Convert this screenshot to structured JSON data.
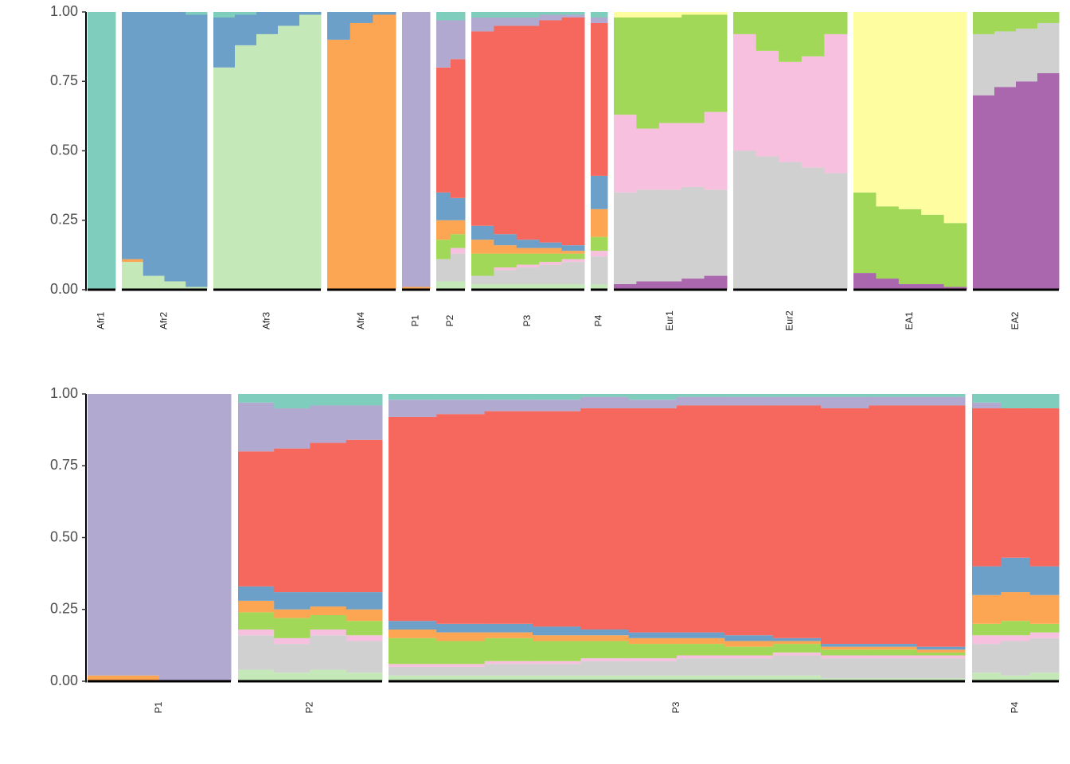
{
  "chart_data": [
    {
      "type": "bar",
      "stacked": true,
      "ylim": [
        0,
        1
      ],
      "yticks": [
        {
          "value": 0,
          "label": "0.00"
        },
        0.25,
        {
          "value": 0.5,
          "label": "0.50"
        },
        0.75,
        {
          "value": 1,
          "label": "1.00"
        }
      ],
      "colors": [
        "#ab67ae",
        "#c5e8b8",
        "#d0d0d0",
        "#f8c0df",
        "#a2d858",
        "#fefea0",
        "#fca552",
        "#6ca0c8",
        "#f6685e",
        "#b1a9d0",
        "#7fcdbc"
      ],
      "groups": [
        {
          "label": "Afr1",
          "individuals": [
            [
              0,
              0,
              0,
              0,
              0,
              0,
              0,
              0,
              0,
              0,
              1
            ]
          ]
        },
        {
          "label": "Afr2",
          "individuals": [
            [
              0,
              0.1,
              0,
              0,
              0,
              0,
              0.01,
              0.89,
              0,
              0,
              0
            ],
            [
              0,
              0.05,
              0,
              0,
              0,
              0,
              0,
              0.95,
              0,
              0,
              0
            ],
            [
              0,
              0.03,
              0,
              0,
              0,
              0,
              0,
              0.97,
              0,
              0,
              0
            ],
            [
              0,
              0.01,
              0,
              0,
              0,
              0,
              0,
              0.98,
              0,
              0,
              0.01
            ]
          ]
        },
        {
          "label": "Afr3",
          "individuals": [
            [
              0,
              0.8,
              0,
              0,
              0,
              0,
              0,
              0.18,
              0,
              0,
              0.02
            ],
            [
              0,
              0.88,
              0,
              0,
              0,
              0,
              0,
              0.11,
              0,
              0,
              0.01
            ],
            [
              0,
              0.92,
              0,
              0,
              0,
              0,
              0,
              0.08,
              0,
              0,
              0
            ],
            [
              0,
              0.95,
              0,
              0,
              0,
              0,
              0,
              0.05,
              0,
              0,
              0
            ],
            [
              0,
              0.99,
              0,
              0,
              0,
              0,
              0,
              0.01,
              0,
              0,
              0
            ]
          ]
        },
        {
          "label": "Afr4",
          "individuals": [
            [
              0,
              0,
              0,
              0,
              0,
              0,
              0.9,
              0.1,
              0,
              0,
              0
            ],
            [
              0,
              0,
              0,
              0,
              0,
              0,
              0.96,
              0.04,
              0,
              0,
              0
            ],
            [
              0,
              0,
              0,
              0,
              0,
              0,
              0.99,
              0.01,
              0,
              0,
              0
            ]
          ]
        },
        {
          "label": "P1",
          "individuals": [
            [
              0,
              0,
              0,
              0,
              0,
              0,
              0.01,
              0,
              0,
              0.99,
              0
            ]
          ]
        },
        {
          "label": "P2",
          "individuals": [
            [
              0,
              0.03,
              0.08,
              0,
              0.07,
              0,
              0.07,
              0.1,
              0.45,
              0.17,
              0.03
            ],
            [
              0,
              0.03,
              0.1,
              0.02,
              0.05,
              0,
              0.05,
              0.08,
              0.5,
              0.14,
              0.03
            ]
          ]
        },
        {
          "label": "P3",
          "individuals": [
            [
              0,
              0.02,
              0.03,
              0,
              0.08,
              0,
              0.05,
              0.05,
              0.7,
              0.05,
              0.02
            ],
            [
              0,
              0.02,
              0.05,
              0.01,
              0.05,
              0,
              0.03,
              0.04,
              0.75,
              0.03,
              0.02
            ],
            [
              0,
              0.02,
              0.06,
              0.01,
              0.04,
              0,
              0.02,
              0.03,
              0.77,
              0.03,
              0.02
            ],
            [
              0,
              0.02,
              0.07,
              0.01,
              0.03,
              0,
              0.02,
              0.02,
              0.8,
              0.02,
              0.01
            ],
            [
              0,
              0.02,
              0.08,
              0.01,
              0.02,
              0,
              0.01,
              0.02,
              0.82,
              0.01,
              0.01
            ]
          ]
        },
        {
          "label": "P4",
          "individuals": [
            [
              0,
              0.02,
              0.1,
              0.02,
              0.05,
              0,
              0.1,
              0.12,
              0.55,
              0.02,
              0.02
            ]
          ]
        },
        {
          "label": "Eur1",
          "individuals": [
            [
              0.02,
              0,
              0.33,
              0.28,
              0.35,
              0.02,
              0,
              0,
              0,
              0,
              0
            ],
            [
              0.03,
              0,
              0.33,
              0.22,
              0.4,
              0.02,
              0,
              0,
              0,
              0,
              0
            ],
            [
              0.03,
              0,
              0.33,
              0.24,
              0.38,
              0.02,
              0,
              0,
              0,
              0,
              0
            ],
            [
              0.04,
              0,
              0.33,
              0.23,
              0.39,
              0.01,
              0,
              0,
              0,
              0,
              0
            ],
            [
              0.05,
              0,
              0.31,
              0.28,
              0.35,
              0.01,
              0,
              0,
              0,
              0,
              0
            ]
          ]
        },
        {
          "label": "Eur2",
          "individuals": [
            [
              0,
              0,
              0.5,
              0.42,
              0.08,
              0,
              0,
              0,
              0,
              0,
              0
            ],
            [
              0,
              0,
              0.48,
              0.38,
              0.14,
              0,
              0,
              0,
              0,
              0,
              0
            ],
            [
              0,
              0,
              0.46,
              0.36,
              0.18,
              0,
              0,
              0,
              0,
              0,
              0
            ],
            [
              0,
              0,
              0.44,
              0.4,
              0.16,
              0,
              0,
              0,
              0,
              0,
              0
            ],
            [
              0,
              0,
              0.42,
              0.5,
              0.08,
              0,
              0,
              0,
              0,
              0,
              0
            ]
          ]
        },
        {
          "label": "EA1",
          "individuals": [
            [
              0.06,
              0,
              0,
              0,
              0.29,
              0.65,
              0,
              0,
              0,
              0,
              0
            ],
            [
              0.04,
              0,
              0,
              0,
              0.26,
              0.7,
              0,
              0,
              0,
              0,
              0
            ],
            [
              0.02,
              0,
              0,
              0,
              0.27,
              0.71,
              0,
              0,
              0,
              0,
              0
            ],
            [
              0.02,
              0,
              0,
              0,
              0.25,
              0.73,
              0,
              0,
              0,
              0,
              0
            ],
            [
              0.01,
              0,
              0,
              0,
              0.23,
              0.76,
              0,
              0,
              0,
              0,
              0
            ]
          ]
        },
        {
          "label": "EA2",
          "individuals": [
            [
              0.7,
              0,
              0.22,
              0,
              0.08,
              0,
              0,
              0,
              0,
              0,
              0
            ],
            [
              0.73,
              0,
              0.2,
              0,
              0.07,
              0,
              0,
              0,
              0,
              0,
              0
            ],
            [
              0.75,
              0,
              0.19,
              0,
              0.06,
              0,
              0,
              0,
              0,
              0,
              0
            ],
            [
              0.78,
              0,
              0.18,
              0,
              0.04,
              0,
              0,
              0,
              0,
              0,
              0
            ]
          ]
        }
      ]
    },
    {
      "type": "bar",
      "stacked": true,
      "ylim": [
        0,
        1
      ],
      "yticks": [
        {
          "value": 0,
          "label": "0.00"
        },
        0.25,
        {
          "value": 0.5,
          "label": "0.50"
        },
        0.75,
        {
          "value": 1,
          "label": "1.00"
        }
      ],
      "colors": [
        "#ab67ae",
        "#c5e8b8",
        "#d0d0d0",
        "#f8c0df",
        "#a2d858",
        "#fefea0",
        "#fca552",
        "#6ca0c8",
        "#f6685e",
        "#b1a9d0",
        "#7fcdbc"
      ],
      "groups": [
        {
          "label": "P1",
          "individuals": [
            [
              0,
              0,
              0,
              0,
              0,
              0,
              0.02,
              0,
              0,
              0.98,
              0
            ],
            [
              0,
              0,
              0,
              0,
              0,
              0,
              0,
              0,
              0,
              1,
              0
            ]
          ]
        },
        {
          "label": "P2",
          "individuals": [
            [
              0,
              0.04,
              0.12,
              0.02,
              0.06,
              0,
              0.04,
              0.05,
              0.47,
              0.17,
              0.03
            ],
            [
              0,
              0.03,
              0.1,
              0.02,
              0.07,
              0,
              0.03,
              0.06,
              0.5,
              0.14,
              0.05
            ],
            [
              0,
              0.04,
              0.12,
              0.02,
              0.05,
              0,
              0.03,
              0.05,
              0.52,
              0.13,
              0.04
            ],
            [
              0,
              0.03,
              0.11,
              0.02,
              0.05,
              0,
              0.04,
              0.06,
              0.53,
              0.12,
              0.04
            ]
          ]
        },
        {
          "label": "P3",
          "individuals": [
            [
              0,
              0.02,
              0.03,
              0.01,
              0.09,
              0,
              0.03,
              0.03,
              0.71,
              0.06,
              0.02
            ],
            [
              0,
              0.02,
              0.03,
              0.01,
              0.08,
              0,
              0.03,
              0.03,
              0.73,
              0.05,
              0.02
            ],
            [
              0,
              0.02,
              0.04,
              0.01,
              0.08,
              0,
              0.02,
              0.03,
              0.74,
              0.04,
              0.02
            ],
            [
              0,
              0.02,
              0.04,
              0.01,
              0.07,
              0,
              0.02,
              0.03,
              0.75,
              0.04,
              0.02
            ],
            [
              0,
              0.02,
              0.05,
              0.01,
              0.06,
              0,
              0.02,
              0.02,
              0.77,
              0.04,
              0.01
            ],
            [
              0,
              0.02,
              0.05,
              0.01,
              0.05,
              0,
              0.02,
              0.02,
              0.78,
              0.03,
              0.02
            ],
            [
              0,
              0.02,
              0.06,
              0.01,
              0.04,
              0,
              0.02,
              0.02,
              0.79,
              0.03,
              0.01
            ],
            [
              0,
              0.02,
              0.06,
              0.01,
              0.03,
              0,
              0.02,
              0.02,
              0.8,
              0.03,
              0.01
            ],
            [
              0,
              0.02,
              0.07,
              0.01,
              0.03,
              0,
              0.01,
              0.01,
              0.81,
              0.03,
              0.01
            ],
            [
              0,
              0.01,
              0.07,
              0.01,
              0.02,
              0,
              0.01,
              0.01,
              0.82,
              0.04,
              0.01
            ],
            [
              0,
              0.01,
              0.07,
              0.01,
              0.02,
              0,
              0.01,
              0.01,
              0.83,
              0.03,
              0.01
            ],
            [
              0,
              0.01,
              0.07,
              0.01,
              0.01,
              0,
              0.01,
              0.01,
              0.84,
              0.03,
              0.01
            ]
          ]
        },
        {
          "label": "P4",
          "individuals": [
            [
              0,
              0.03,
              0.1,
              0.03,
              0.04,
              0,
              0.1,
              0.1,
              0.55,
              0.02,
              0.03
            ],
            [
              0,
              0.02,
              0.12,
              0.02,
              0.05,
              0,
              0.1,
              0.12,
              0.52,
              0,
              0.05
            ],
            [
              0,
              0.03,
              0.12,
              0.02,
              0.03,
              0,
              0.1,
              0.1,
              0.55,
              0,
              0.05
            ]
          ]
        }
      ]
    }
  ]
}
